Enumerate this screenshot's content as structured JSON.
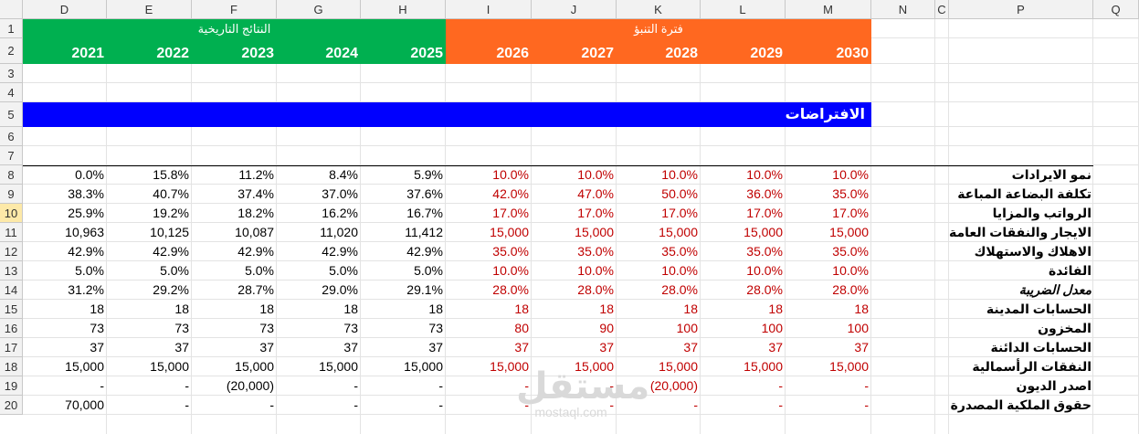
{
  "columns": [
    "D",
    "E",
    "F",
    "G",
    "H",
    "I",
    "J",
    "K",
    "L",
    "M",
    "N",
    "C",
    "P",
    "Q"
  ],
  "rows": [
    "1",
    "2",
    "3",
    "4",
    "5",
    "6",
    "7",
    "8",
    "9",
    "10",
    "11",
    "12",
    "13",
    "14",
    "15",
    "16",
    "17",
    "18",
    "19",
    "20"
  ],
  "header_groups": {
    "historical": "النتائج التاريخية",
    "forecast": "فترة التنبؤ"
  },
  "years": [
    "2021",
    "2022",
    "2023",
    "2024",
    "2025",
    "2026",
    "2027",
    "2028",
    "2029",
    "2030"
  ],
  "section_title": "الافتراضات",
  "table": [
    {
      "label": "نمو الايرادات",
      "values": [
        "0.0%",
        "15.8%",
        "11.2%",
        "8.4%",
        "5.9%",
        "10.0%",
        "10.0%",
        "10.0%",
        "10.0%",
        "10.0%"
      ]
    },
    {
      "label": "تكلفة البضاعة المباعة",
      "values": [
        "38.3%",
        "40.7%",
        "37.4%",
        "37.0%",
        "37.6%",
        "42.0%",
        "47.0%",
        "50.0%",
        "36.0%",
        "35.0%"
      ]
    },
    {
      "label": "الرواتب والمزايا",
      "values": [
        "25.9%",
        "19.2%",
        "18.2%",
        "16.2%",
        "16.7%",
        "17.0%",
        "17.0%",
        "17.0%",
        "17.0%",
        "17.0%"
      ]
    },
    {
      "label": "الايجار والنفقات العامة",
      "values": [
        "10,963",
        "10,125",
        "10,087",
        "11,020",
        "11,412",
        "15,000",
        "15,000",
        "15,000",
        "15,000",
        "15,000"
      ]
    },
    {
      "label": "الاهلاك والاستهلاك",
      "values": [
        "42.9%",
        "42.9%",
        "42.9%",
        "42.9%",
        "42.9%",
        "35.0%",
        "35.0%",
        "35.0%",
        "35.0%",
        "35.0%"
      ]
    },
    {
      "label": "الفائدة",
      "values": [
        "5.0%",
        "5.0%",
        "5.0%",
        "5.0%",
        "5.0%",
        "10.0%",
        "10.0%",
        "10.0%",
        "10.0%",
        "10.0%"
      ]
    },
    {
      "label": "معدل الضريبة",
      "values": [
        "31.2%",
        "29.2%",
        "28.7%",
        "29.0%",
        "29.1%",
        "28.0%",
        "28.0%",
        "28.0%",
        "28.0%",
        "28.0%"
      ]
    },
    {
      "label": "الحسابات المدينة",
      "values": [
        "18",
        "18",
        "18",
        "18",
        "18",
        "18",
        "18",
        "18",
        "18",
        "18"
      ]
    },
    {
      "label": "المخزون",
      "values": [
        "73",
        "73",
        "73",
        "73",
        "73",
        "80",
        "90",
        "100",
        "100",
        "100"
      ]
    },
    {
      "label": "الحسابات الدائنة",
      "values": [
        "37",
        "37",
        "37",
        "37",
        "37",
        "37",
        "37",
        "37",
        "37",
        "37"
      ]
    },
    {
      "label": "النفقات الرأسمالية",
      "values": [
        "15,000",
        "15,000",
        "15,000",
        "15,000",
        "15,000",
        "15,000",
        "15,000",
        "15,000",
        "15,000",
        "15,000"
      ]
    },
    {
      "label": "اصدر الديون",
      "values": [
        "-",
        "-",
        "(20,000)",
        "-",
        "-",
        "-",
        "-",
        "(20,000)",
        "-",
        "-"
      ]
    },
    {
      "label": "حقوق الملكية المصدرة",
      "values": [
        "70,000",
        "-",
        "-",
        "-",
        "-",
        "-",
        "-",
        "-",
        "-",
        "-"
      ]
    }
  ],
  "watermark": {
    "arabic": "مستقل",
    "latin": "mostaql.com"
  },
  "colors": {
    "historical": "#00b050",
    "forecast": "#ff6820",
    "section": "#0000ff",
    "forecast_text": "#c00000"
  }
}
